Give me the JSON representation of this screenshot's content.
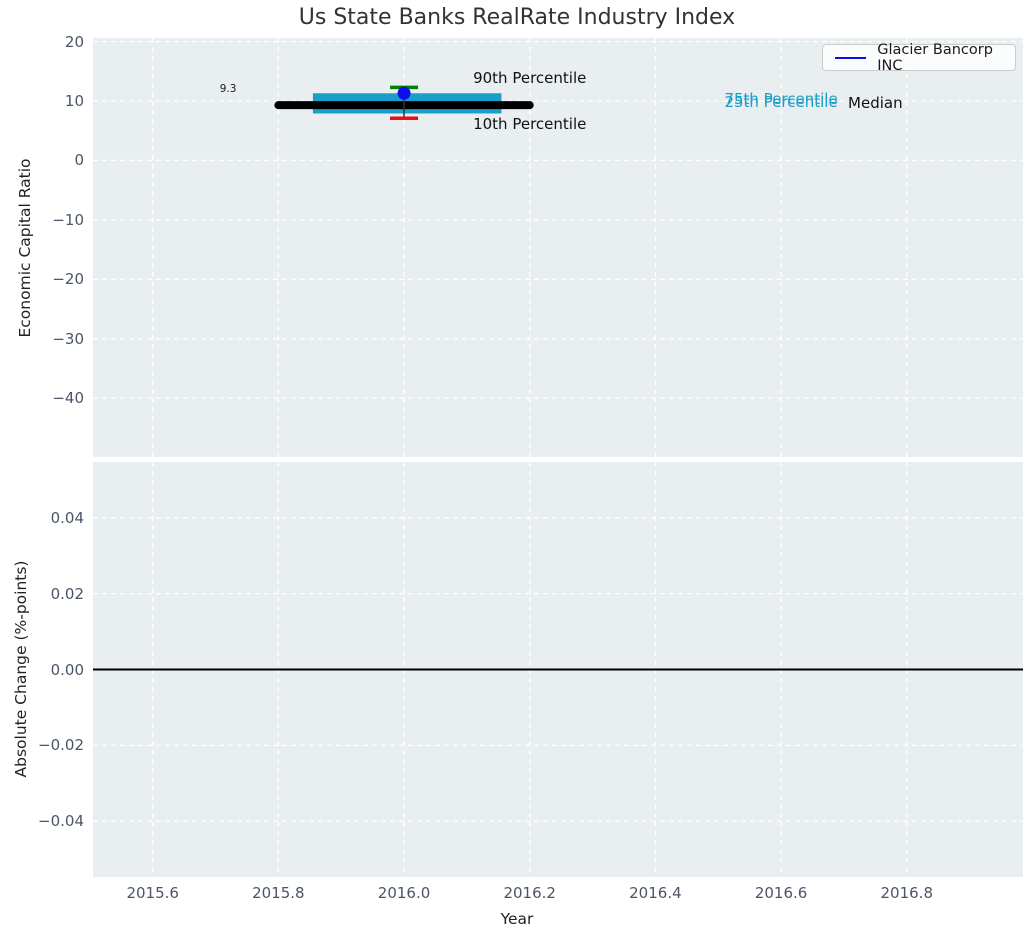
{
  "figure": {
    "title": "Us State Banks RealRate Industry Index"
  },
  "legend": {
    "label": "Glacier Bancorp INC",
    "line_color": "#0d0dee",
    "position": "upper right"
  },
  "colors": {
    "figure_bg": "#ffffff",
    "axes_bg": "#e9eef0",
    "grid": "#ffffff",
    "tick_label": "#4a5568",
    "axis_label": "#222222",
    "median_line": "#000000",
    "iqr_band": "#1a9fca",
    "company_marker": "#0d0dee",
    "p90_cap": "#008000",
    "p10_cap": "#e81010",
    "whisker_line": "#333333",
    "zero_line": "#000000"
  },
  "chart_data": [
    {
      "type": "line",
      "panel": "top",
      "title": "Us State Banks RealRate Industry Index",
      "xlabel": "Year",
      "ylabel": "Economic Capital Ratio",
      "xlim": [
        2015.505,
        2016.985
      ],
      "ylim": [
        -49.9,
        20.6
      ],
      "grid": true,
      "legend_position": "upper right",
      "xticks": {
        "values": [
          2015.6,
          2015.8,
          2016.0,
          2016.2,
          2016.4,
          2016.6,
          2016.8
        ],
        "labels": [
          "2015.6",
          "2015.8",
          "2016.0",
          "2016.2",
          "2016.4",
          "2016.6",
          "2016.8"
        ],
        "show_labels": false
      },
      "yticks": {
        "values": [
          20,
          10,
          0,
          -10,
          -20,
          -30,
          -40
        ],
        "labels": [
          "20",
          "10",
          "0",
          "−10",
          "−20",
          "−30",
          "−40"
        ]
      },
      "series": [
        {
          "role": "median",
          "name": "Median",
          "x": [
            2015.8,
            2016.2
          ],
          "y": 9.3,
          "color": "#000000",
          "linewidth": 8
        },
        {
          "role": "iqr-band",
          "name": "25th-75th Percentile",
          "x": [
            2015.855,
            2016.155
          ],
          "y_low": 7.9,
          "y_high": 11.3,
          "color": "#1a9fca"
        },
        {
          "role": "whisker",
          "name": "10th-90th Percentile",
          "x": 2016.0,
          "y_low": 7.1,
          "y_high": 12.3,
          "line_color": "#333333",
          "cap_high_color": "#008000",
          "cap_low_color": "#e81010",
          "cap_width": 28
        },
        {
          "role": "company",
          "name": "Glacier Bancorp INC",
          "x": 2016.0,
          "y": 11.3,
          "color": "#0d0dee",
          "marker": "circle",
          "radius": 6.5
        }
      ],
      "annotations": [
        {
          "text": "9.3",
          "x": 2015.72,
          "y": 11.85,
          "color": "#1a1a1a",
          "size": 10.5
        },
        {
          "text": "90th Percentile",
          "x": 2016.2,
          "y": 13.9,
          "color": "#111111",
          "size": 15
        },
        {
          "text": "10th Percentile",
          "x": 2016.2,
          "y": 6.1,
          "color": "#111111",
          "size": 15
        },
        {
          "text": "75th Percentile",
          "x": 2016.6,
          "y": 10.3,
          "color": "#1a9fca",
          "size": 15
        },
        {
          "text": "25th Percentile",
          "x": 2016.6,
          "y": 9.9,
          "color": "#1a9fca",
          "size": 15
        },
        {
          "text": "Median",
          "x": 2016.75,
          "y": 9.65,
          "color": "#111111",
          "size": 15
        }
      ]
    },
    {
      "type": "line",
      "panel": "bottom",
      "xlabel": "Year",
      "ylabel": "Absolute Change (%-points)",
      "xlim": [
        2015.505,
        2016.985
      ],
      "ylim": [
        -0.0547,
        0.0547
      ],
      "grid": true,
      "xticks": {
        "values": [
          2015.6,
          2015.8,
          2016.0,
          2016.2,
          2016.4,
          2016.6,
          2016.8
        ],
        "labels": [
          "2015.6",
          "2015.8",
          "2016.0",
          "2016.2",
          "2016.4",
          "2016.6",
          "2016.8"
        ],
        "show_labels": true
      },
      "yticks": {
        "values": [
          0.04,
          0.02,
          0.0,
          -0.02,
          -0.04
        ],
        "labels": [
          "0.04",
          "0.02",
          "0.00",
          "−0.02",
          "−0.04"
        ]
      },
      "zero_line": {
        "y": 0.0,
        "color": "#000000",
        "linewidth": 2
      }
    }
  ]
}
